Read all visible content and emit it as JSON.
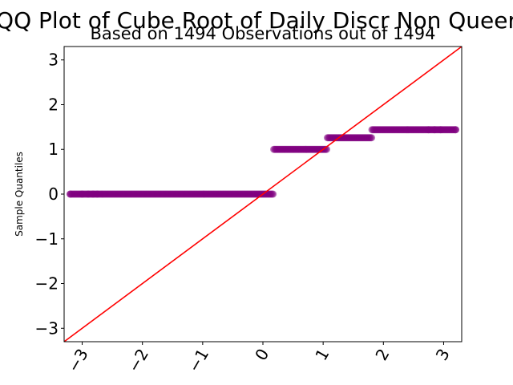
{
  "chart_data": {
    "type": "scatter",
    "title": "QQ Plot of Cube Root of Daily Discr Non Queer",
    "subtitle": "Based on 1494 Observations out of 1494",
    "xlabel": "",
    "ylabel": "Sample Quantiles",
    "xlim": [
      -3.3,
      3.3
    ],
    "ylim": [
      -3.3,
      3.3
    ],
    "xticks": [
      -3,
      -2,
      -1,
      0,
      1,
      2,
      3
    ],
    "yticks": [
      -3,
      -2,
      -1,
      0,
      1,
      2,
      3
    ],
    "xtick_labels": [
      "−3",
      "−2",
      "−1",
      "0",
      "1",
      "2",
      "3"
    ],
    "ytick_labels": [
      "−3",
      "−2",
      "−1",
      "0",
      "1",
      "2",
      "3"
    ],
    "grid": false,
    "point_color": "#800080",
    "line_color": "#ff0000",
    "reference_line": {
      "slope": 1,
      "intercept": 0
    },
    "series": [
      {
        "y": 0,
        "x_range": [
          -3.2,
          0.18
        ],
        "outliers_x": [
          -3.2,
          -3.0,
          -2.9,
          -2.82,
          -2.75
        ]
      },
      {
        "y": 1,
        "x_range": [
          0.18,
          1.07
        ],
        "outliers_x": []
      },
      {
        "y": 1.26,
        "x_range": [
          1.07,
          1.81
        ],
        "outliers_x": []
      },
      {
        "y": 1.44,
        "x_range": [
          1.81,
          3.2
        ],
        "outliers_x": [
          2.75,
          2.85,
          2.95,
          3.2
        ]
      }
    ]
  }
}
